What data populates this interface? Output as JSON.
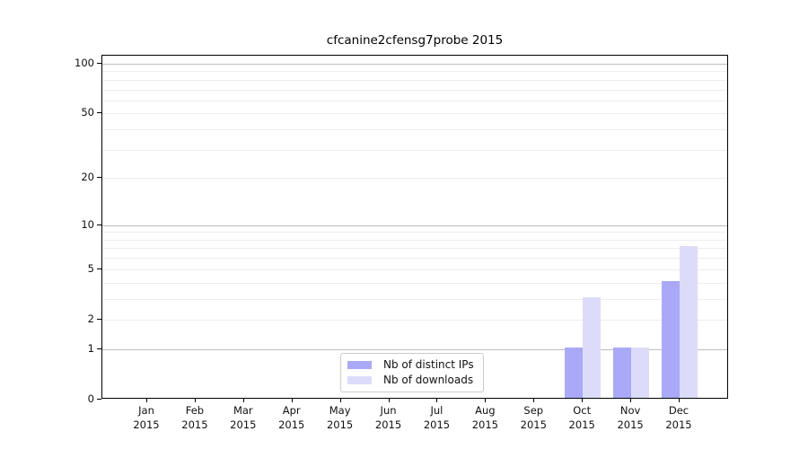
{
  "chart_data": {
    "type": "bar",
    "title": "cfcanine2cfensg7probe 2015",
    "xlabel": "",
    "ylabel": "",
    "year": "2015",
    "categories": [
      "Jan",
      "Feb",
      "Mar",
      "Apr",
      "May",
      "Jun",
      "Jul",
      "Aug",
      "Sep",
      "Oct",
      "Nov",
      "Dec"
    ],
    "series": [
      {
        "name": "Nb of distinct IPs",
        "color": "#a9a9f8",
        "values": [
          0,
          0,
          0,
          0,
          0,
          0,
          0,
          0,
          0,
          1,
          1,
          4
        ]
      },
      {
        "name": "Nb of downloads",
        "color": "#dcdcfa",
        "values": [
          0,
          0,
          0,
          0,
          0,
          0,
          0,
          0,
          0,
          3,
          1,
          7
        ]
      }
    ],
    "y_axis": {
      "scale": "log1p",
      "ylim": [
        0,
        111.8
      ],
      "tick_labels": [
        "0",
        "1",
        "2",
        "5",
        "10",
        "20",
        "50",
        "100"
      ],
      "tick_values": [
        0,
        1,
        2,
        5,
        10,
        20,
        50,
        100
      ],
      "decade_gridlines": [
        1,
        10,
        100
      ],
      "minor_gridlines": [
        2,
        3,
        4,
        5,
        6,
        7,
        8,
        9,
        20,
        30,
        40,
        50,
        60,
        70,
        80,
        90
      ],
      "grid": "on"
    },
    "legend": {
      "position": "lower center",
      "entries": [
        "Nb of distinct IPs",
        "Nb of downloads"
      ]
    }
  },
  "colors": {
    "bar_distinct_ips": "#a9a9f8",
    "bar_downloads": "#dcdcfa",
    "gridline_decade": "#bdbdbd",
    "gridline_minor": "#ededed",
    "axis": "#000000",
    "legend_border": "#cccccc"
  }
}
